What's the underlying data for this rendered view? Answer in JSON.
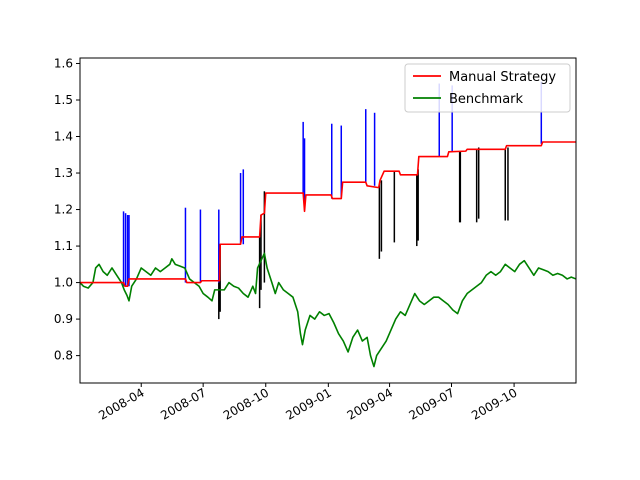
{
  "chart_data": {
    "type": "line",
    "title": "",
    "xlabel": "",
    "ylabel": "",
    "x_domain": [
      "2008-01-02",
      "2009-12-31"
    ],
    "ylim": [
      0.725,
      1.615
    ],
    "xticks": [
      {
        "date": "2008-04-01",
        "label": "2008-04"
      },
      {
        "date": "2008-07-01",
        "label": "2008-07"
      },
      {
        "date": "2008-10-01",
        "label": "2008-10"
      },
      {
        "date": "2009-01-01",
        "label": "2009-01"
      },
      {
        "date": "2009-04-01",
        "label": "2009-04"
      },
      {
        "date": "2009-07-01",
        "label": "2009-07"
      },
      {
        "date": "2009-10-01",
        "label": "2009-10"
      }
    ],
    "yticks": [
      {
        "value": 0.8,
        "label": "0.8"
      },
      {
        "value": 0.9,
        "label": "0.9"
      },
      {
        "value": 1.0,
        "label": "1.0"
      },
      {
        "value": 1.1,
        "label": "1.1"
      },
      {
        "value": 1.2,
        "label": "1.2"
      },
      {
        "value": 1.3,
        "label": "1.3"
      },
      {
        "value": 1.4,
        "label": "1.4"
      },
      {
        "value": 1.5,
        "label": "1.5"
      },
      {
        "value": 1.6,
        "label": "1.6"
      }
    ],
    "grid": false,
    "legend": {
      "position": "top-right"
    },
    "series": [
      {
        "name": "Manual Strategy",
        "color": "#ff0000",
        "points": [
          [
            "2008-01-02",
            1.0
          ],
          [
            "2008-03-06",
            1.0
          ],
          [
            "2008-03-08",
            0.99
          ],
          [
            "2008-03-12",
            0.99
          ],
          [
            "2008-03-14",
            1.01
          ],
          [
            "2008-06-05",
            1.01
          ],
          [
            "2008-06-07",
            1.0
          ],
          [
            "2008-06-27",
            1.0
          ],
          [
            "2008-06-29",
            1.005
          ],
          [
            "2008-07-25",
            1.005
          ],
          [
            "2008-07-26",
            1.105
          ],
          [
            "2008-08-25",
            1.105
          ],
          [
            "2008-08-27",
            1.125
          ],
          [
            "2008-09-22",
            1.125
          ],
          [
            "2008-09-24",
            1.185
          ],
          [
            "2008-09-29",
            1.19
          ],
          [
            "2008-10-01",
            1.245
          ],
          [
            "2008-11-25",
            1.245
          ],
          [
            "2008-11-27",
            1.195
          ],
          [
            "2008-11-29",
            1.24
          ],
          [
            "2009-01-05",
            1.24
          ],
          [
            "2009-01-07",
            1.23
          ],
          [
            "2009-01-20",
            1.23
          ],
          [
            "2009-01-22",
            1.275
          ],
          [
            "2009-02-25",
            1.275
          ],
          [
            "2009-02-27",
            1.265
          ],
          [
            "2009-03-16",
            1.26
          ],
          [
            "2009-03-18",
            1.28
          ],
          [
            "2009-03-24",
            1.305
          ],
          [
            "2009-04-15",
            1.305
          ],
          [
            "2009-04-17",
            1.295
          ],
          [
            "2009-05-12",
            1.295
          ],
          [
            "2009-05-14",
            1.345
          ],
          [
            "2009-06-25",
            1.345
          ],
          [
            "2009-06-27",
            1.358
          ],
          [
            "2009-07-22",
            1.36
          ],
          [
            "2009-07-24",
            1.365
          ],
          [
            "2009-09-18",
            1.365
          ],
          [
            "2009-09-20",
            1.375
          ],
          [
            "2009-11-10",
            1.375
          ],
          [
            "2009-11-12",
            1.385
          ],
          [
            "2009-12-31",
            1.385
          ]
        ]
      },
      {
        "name": "Benchmark",
        "color": "#008000",
        "points": [
          [
            "2008-01-02",
            1.0
          ],
          [
            "2008-01-07",
            0.99
          ],
          [
            "2008-01-14",
            0.985
          ],
          [
            "2008-01-21",
            1.0
          ],
          [
            "2008-01-25",
            1.04
          ],
          [
            "2008-01-30",
            1.05
          ],
          [
            "2008-02-05",
            1.03
          ],
          [
            "2008-02-11",
            1.02
          ],
          [
            "2008-02-18",
            1.04
          ],
          [
            "2008-02-25",
            1.02
          ],
          [
            "2008-03-03",
            1.0
          ],
          [
            "2008-03-07",
            0.98
          ],
          [
            "2008-03-11",
            0.965
          ],
          [
            "2008-03-14",
            0.95
          ],
          [
            "2008-03-18",
            0.99
          ],
          [
            "2008-03-25",
            1.01
          ],
          [
            "2008-04-01",
            1.04
          ],
          [
            "2008-04-08",
            1.03
          ],
          [
            "2008-04-15",
            1.02
          ],
          [
            "2008-04-22",
            1.04
          ],
          [
            "2008-04-29",
            1.03
          ],
          [
            "2008-05-06",
            1.04
          ],
          [
            "2008-05-13",
            1.05
          ],
          [
            "2008-05-16",
            1.065
          ],
          [
            "2008-05-21",
            1.05
          ],
          [
            "2008-05-28",
            1.045
          ],
          [
            "2008-06-04",
            1.04
          ],
          [
            "2008-06-11",
            1.01
          ],
          [
            "2008-06-18",
            1.0
          ],
          [
            "2008-06-25",
            0.99
          ],
          [
            "2008-07-01",
            0.97
          ],
          [
            "2008-07-08",
            0.96
          ],
          [
            "2008-07-14",
            0.95
          ],
          [
            "2008-07-18",
            0.98
          ],
          [
            "2008-07-25",
            0.98
          ],
          [
            "2008-08-01",
            0.98
          ],
          [
            "2008-08-08",
            1.0
          ],
          [
            "2008-08-15",
            0.99
          ],
          [
            "2008-08-22",
            0.985
          ],
          [
            "2008-08-29",
            0.97
          ],
          [
            "2008-09-05",
            0.96
          ],
          [
            "2008-09-12",
            0.99
          ],
          [
            "2008-09-16",
            0.97
          ],
          [
            "2008-09-19",
            1.04
          ],
          [
            "2008-09-24",
            1.06
          ],
          [
            "2008-09-29",
            1.08
          ],
          [
            "2008-10-03",
            1.04
          ],
          [
            "2008-10-10",
            1.0
          ],
          [
            "2008-10-15",
            0.97
          ],
          [
            "2008-10-20",
            1.0
          ],
          [
            "2008-10-27",
            0.98
          ],
          [
            "2008-11-03",
            0.97
          ],
          [
            "2008-11-10",
            0.96
          ],
          [
            "2008-11-17",
            0.92
          ],
          [
            "2008-11-21",
            0.86
          ],
          [
            "2008-11-24",
            0.83
          ],
          [
            "2008-11-28",
            0.87
          ],
          [
            "2008-12-05",
            0.91
          ],
          [
            "2008-12-12",
            0.9
          ],
          [
            "2008-12-19",
            0.92
          ],
          [
            "2008-12-26",
            0.91
          ],
          [
            "2009-01-02",
            0.915
          ],
          [
            "2009-01-09",
            0.89
          ],
          [
            "2009-01-16",
            0.86
          ],
          [
            "2009-01-23",
            0.84
          ],
          [
            "2009-01-30",
            0.81
          ],
          [
            "2009-02-06",
            0.85
          ],
          [
            "2009-02-13",
            0.87
          ],
          [
            "2009-02-20",
            0.84
          ],
          [
            "2009-02-27",
            0.85
          ],
          [
            "2009-03-04",
            0.8
          ],
          [
            "2009-03-09",
            0.77
          ],
          [
            "2009-03-13",
            0.8
          ],
          [
            "2009-03-20",
            0.82
          ],
          [
            "2009-03-27",
            0.84
          ],
          [
            "2009-04-03",
            0.87
          ],
          [
            "2009-04-10",
            0.9
          ],
          [
            "2009-04-17",
            0.92
          ],
          [
            "2009-04-24",
            0.91
          ],
          [
            "2009-05-01",
            0.94
          ],
          [
            "2009-05-08",
            0.97
          ],
          [
            "2009-05-15",
            0.95
          ],
          [
            "2009-05-22",
            0.94
          ],
          [
            "2009-05-29",
            0.95
          ],
          [
            "2009-06-05",
            0.96
          ],
          [
            "2009-06-12",
            0.96
          ],
          [
            "2009-06-19",
            0.95
          ],
          [
            "2009-06-26",
            0.94
          ],
          [
            "2009-07-03",
            0.925
          ],
          [
            "2009-07-10",
            0.915
          ],
          [
            "2009-07-17",
            0.95
          ],
          [
            "2009-07-24",
            0.97
          ],
          [
            "2009-07-31",
            0.98
          ],
          [
            "2009-08-07",
            0.99
          ],
          [
            "2009-08-14",
            1.0
          ],
          [
            "2009-08-21",
            1.02
          ],
          [
            "2009-08-28",
            1.03
          ],
          [
            "2009-09-04",
            1.02
          ],
          [
            "2009-09-11",
            1.03
          ],
          [
            "2009-09-18",
            1.05
          ],
          [
            "2009-09-25",
            1.04
          ],
          [
            "2009-10-02",
            1.03
          ],
          [
            "2009-10-09",
            1.05
          ],
          [
            "2009-10-16",
            1.06
          ],
          [
            "2009-10-23",
            1.04
          ],
          [
            "2009-10-30",
            1.02
          ],
          [
            "2009-11-06",
            1.04
          ],
          [
            "2009-11-13",
            1.035
          ],
          [
            "2009-11-20",
            1.03
          ],
          [
            "2009-11-27",
            1.02
          ],
          [
            "2009-12-04",
            1.025
          ],
          [
            "2009-12-11",
            1.02
          ],
          [
            "2009-12-18",
            1.01
          ],
          [
            "2009-12-24",
            1.015
          ],
          [
            "2009-12-31",
            1.01
          ]
        ]
      }
    ],
    "vlines": [
      {
        "date": "2008-03-06",
        "ymin": 0.99,
        "ymax": 1.195,
        "color": "#0000ff"
      },
      {
        "date": "2008-03-09",
        "ymin": 0.99,
        "ymax": 1.19,
        "color": "#0000ff"
      },
      {
        "date": "2008-03-12",
        "ymin": 0.99,
        "ymax": 1.185,
        "color": "#0000ff"
      },
      {
        "date": "2008-03-14",
        "ymin": 0.99,
        "ymax": 1.185,
        "color": "#0000ff"
      },
      {
        "date": "2008-06-05",
        "ymin": 1.0,
        "ymax": 1.205,
        "color": "#0000ff"
      },
      {
        "date": "2008-06-27",
        "ymin": 1.0,
        "ymax": 1.2,
        "color": "#0000ff"
      },
      {
        "date": "2008-07-24",
        "ymin": 1.0,
        "ymax": 1.2,
        "color": "#0000ff"
      },
      {
        "date": "2008-07-24",
        "ymin": 0.9,
        "ymax": 1.0,
        "color": "#000000"
      },
      {
        "date": "2008-07-26",
        "ymin": 0.92,
        "ymax": 1.105,
        "color": "#000000"
      },
      {
        "date": "2008-08-25",
        "ymin": 1.105,
        "ymax": 1.3,
        "color": "#0000ff"
      },
      {
        "date": "2008-08-29",
        "ymin": 1.105,
        "ymax": 1.31,
        "color": "#0000ff"
      },
      {
        "date": "2008-09-22",
        "ymin": 0.93,
        "ymax": 1.125,
        "color": "#000000"
      },
      {
        "date": "2008-09-24",
        "ymin": 0.98,
        "ymax": 1.185,
        "color": "#000000"
      },
      {
        "date": "2008-09-29",
        "ymin": 1.0,
        "ymax": 1.25,
        "color": "#000000"
      },
      {
        "date": "2008-11-25",
        "ymin": 1.245,
        "ymax": 1.44,
        "color": "#0000ff"
      },
      {
        "date": "2008-11-27",
        "ymin": 1.2,
        "ymax": 1.395,
        "color": "#0000ff"
      },
      {
        "date": "2009-01-06",
        "ymin": 1.23,
        "ymax": 1.435,
        "color": "#0000ff"
      },
      {
        "date": "2009-01-20",
        "ymin": 1.23,
        "ymax": 1.43,
        "color": "#0000ff"
      },
      {
        "date": "2009-02-25",
        "ymin": 1.275,
        "ymax": 1.475,
        "color": "#0000ff"
      },
      {
        "date": "2009-03-10",
        "ymin": 1.265,
        "ymax": 1.465,
        "color": "#0000ff"
      },
      {
        "date": "2009-03-17",
        "ymin": 1.065,
        "ymax": 1.27,
        "color": "#000000"
      },
      {
        "date": "2009-03-20",
        "ymin": 1.085,
        "ymax": 1.28,
        "color": "#000000"
      },
      {
        "date": "2009-04-08",
        "ymin": 1.11,
        "ymax": 1.305,
        "color": "#000000"
      },
      {
        "date": "2009-05-11",
        "ymin": 1.1,
        "ymax": 1.295,
        "color": "#000000"
      },
      {
        "date": "2009-05-13",
        "ymin": 1.115,
        "ymax": 1.31,
        "color": "#000000"
      },
      {
        "date": "2009-06-13",
        "ymin": 1.345,
        "ymax": 1.545,
        "color": "#0000ff"
      },
      {
        "date": "2009-07-02",
        "ymin": 1.36,
        "ymax": 1.54,
        "color": "#0000ff"
      },
      {
        "date": "2009-07-13",
        "ymin": 1.165,
        "ymax": 1.36,
        "color": "#000000"
      },
      {
        "date": "2009-07-14",
        "ymin": 1.165,
        "ymax": 1.36,
        "color": "#000000"
      },
      {
        "date": "2009-08-07",
        "ymin": 1.165,
        "ymax": 1.365,
        "color": "#000000"
      },
      {
        "date": "2009-08-10",
        "ymin": 1.175,
        "ymax": 1.37,
        "color": "#000000"
      },
      {
        "date": "2009-09-18",
        "ymin": 1.17,
        "ymax": 1.365,
        "color": "#000000"
      },
      {
        "date": "2009-09-22",
        "ymin": 1.17,
        "ymax": 1.37,
        "color": "#000000"
      },
      {
        "date": "2009-11-10",
        "ymin": 1.38,
        "ymax": 1.55,
        "color": "#0000ff"
      }
    ]
  }
}
